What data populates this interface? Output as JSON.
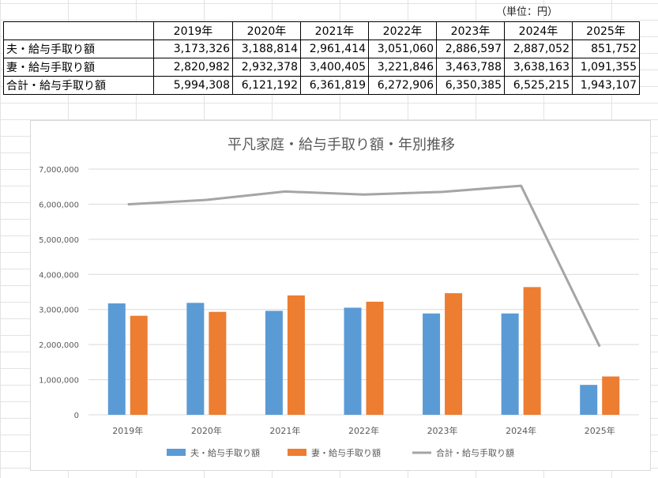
{
  "sheet": {
    "unit_label": "（単位：円）",
    "years": [
      "2019年",
      "2020年",
      "2021年",
      "2022年",
      "2023年",
      "2024年",
      "2025年"
    ],
    "rows": [
      {
        "label": "夫・給与手取り額",
        "values": [
          "3,173,326",
          "3,188,814",
          "2,961,414",
          "3,051,060",
          "2,886,597",
          "2,887,052",
          "851,752"
        ]
      },
      {
        "label": "妻・給与手取り額",
        "values": [
          "2,820,982",
          "2,932,378",
          "3,400,405",
          "3,221,846",
          "3,463,788",
          "3,638,163",
          "1,091,355"
        ]
      },
      {
        "label": "合計・給与手取り額",
        "values": [
          "5,994,308",
          "6,121,192",
          "6,361,819",
          "6,272,906",
          "6,350,385",
          "6,525,215",
          "1,943,107"
        ]
      }
    ]
  },
  "chart_data": {
    "type": "bar",
    "title": "平凡家庭・給与手取り額・年別推移",
    "categories": [
      "2019年",
      "2020年",
      "2021年",
      "2022年",
      "2023年",
      "2024年",
      "2025年"
    ],
    "series": [
      {
        "name": "夫・給与手取り額",
        "type": "bar",
        "color": "#5b9bd5",
        "values": [
          3173326,
          3188814,
          2961414,
          3051060,
          2886597,
          2887052,
          851752
        ]
      },
      {
        "name": "妻・給与手取り額",
        "type": "bar",
        "color": "#ed7d31",
        "values": [
          2820982,
          2932378,
          3400405,
          3221846,
          3463788,
          3638163,
          1091355
        ]
      },
      {
        "name": "合計・給与手取り額",
        "type": "line",
        "color": "#a5a5a5",
        "values": [
          5994308,
          6121192,
          6361819,
          6272906,
          6350385,
          6525215,
          1943107
        ]
      }
    ],
    "ylim": [
      0,
      7000000
    ],
    "yticks": [
      "0",
      "1,000,000",
      "2,000,000",
      "3,000,000",
      "4,000,000",
      "5,000,000",
      "6,000,000",
      "7,000,000"
    ],
    "ytick_values": [
      0,
      1000000,
      2000000,
      3000000,
      4000000,
      5000000,
      6000000,
      7000000
    ],
    "grid": true,
    "legend": "bottom"
  }
}
